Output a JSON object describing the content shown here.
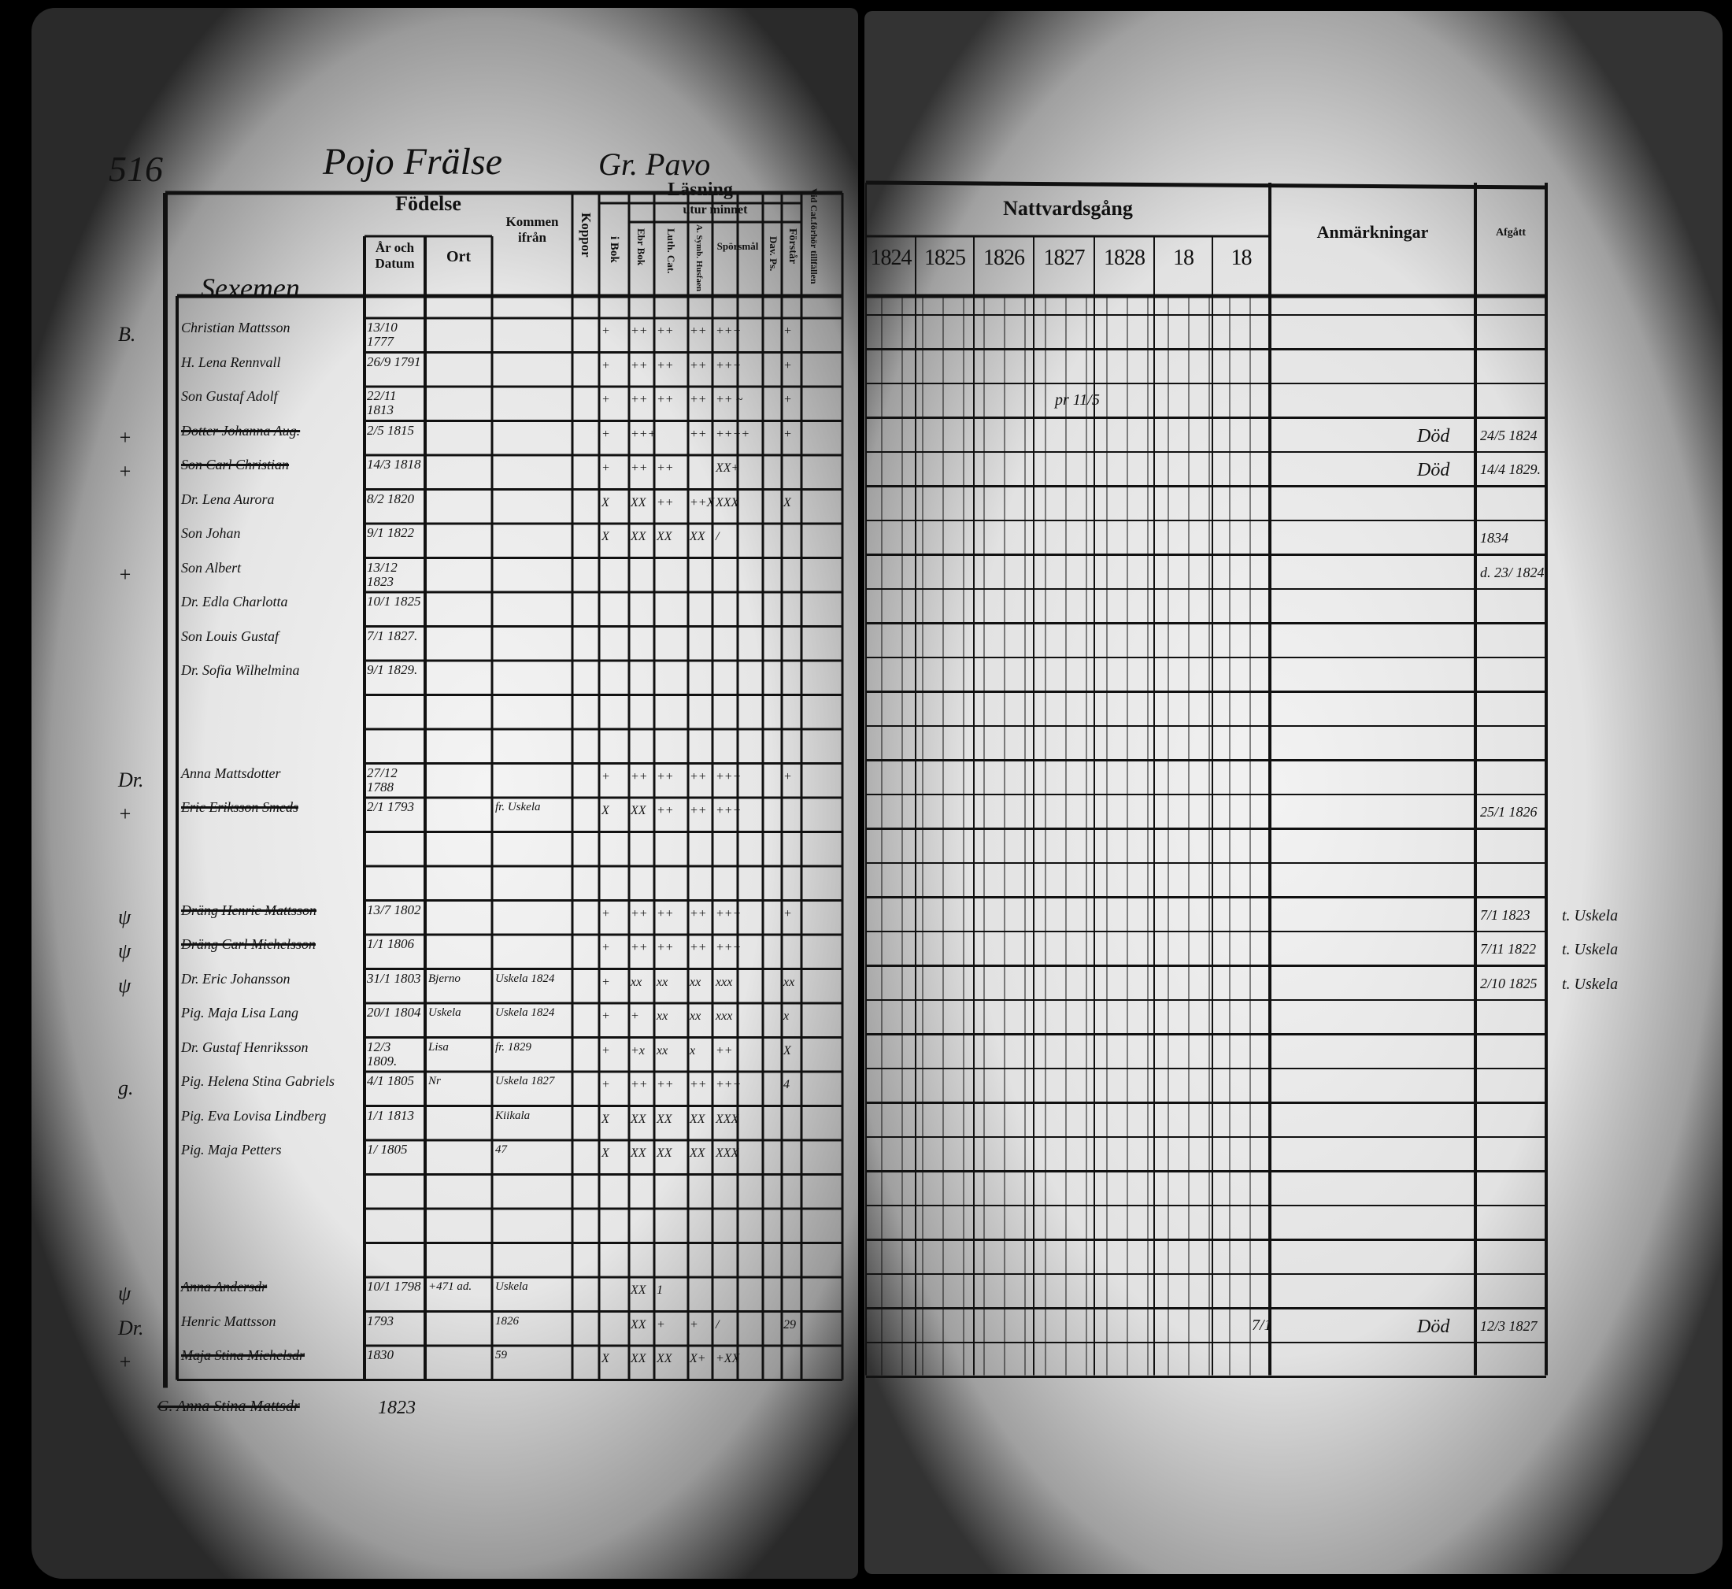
{
  "page_number": "516",
  "heading": {
    "estate": "Pojo Frälse",
    "village": "Gr. Pavo"
  },
  "group_label": "Sexemen",
  "left_headers": {
    "fodelse": "Födelse",
    "ar_och_datum": "År och Datum",
    "ort": "Ort",
    "kommen_ifran": "Kommen ifrån",
    "koppor": "Koppor",
    "lasning": "Läsning",
    "i_bok": "i Bok",
    "utur_minnet": "utur minnet",
    "ebr_bok": "Ebr Bok",
    "luth_cat": "Luth. Cat.",
    "a_symb": "A. Symb. Husfaen",
    "sporsmal": "Spörsmål",
    "dav_ps": "Dav. Ps.",
    "forstar": "Förstår",
    "vid_cat": "Vid Cat.förhör tillfällen"
  },
  "right_headers": {
    "nattvardsgang": "Nattvardsgång",
    "years": [
      "1824",
      "1825",
      "1826",
      "1827",
      "1828",
      "18",
      "18"
    ],
    "anmarkningar": "Anmärkningar",
    "afgatt": "Afgått"
  },
  "rows": [
    {
      "margin": "B.",
      "name": "Christian Mattsson",
      "date": "13/10 1777",
      "marks": [
        "+",
        "++",
        "++",
        "++",
        "+++",
        "+"
      ]
    },
    {
      "name": "H. Lena Rennvall",
      "date": "26/9 1791",
      "marks": [
        "+",
        "++",
        "++",
        "++",
        "+++",
        "+"
      ]
    },
    {
      "name": "Son Gustaf Adolf",
      "date": "22/11 1813",
      "marks": [
        "+",
        "++",
        "++",
        "++",
        "++ ~",
        "+"
      ],
      "nattvard": "pr 11/5"
    },
    {
      "margin": "+",
      "name": "Dotter Johanna Aug.",
      "date": "2/5 1815",
      "struck": true,
      "marks": [
        "+",
        "+++",
        "",
        "++",
        "++++",
        "+"
      ],
      "remark": "Död",
      "afgatt": "24/5 1824"
    },
    {
      "margin": "+",
      "name": "Son Carl Christian",
      "date": "14/3 1818",
      "struck": true,
      "marks": [
        "+",
        "++",
        "++",
        "",
        "XX+",
        ""
      ],
      "remark": "Död",
      "afgatt": "14/4 1829."
    },
    {
      "name": "Dr. Lena Aurora",
      "date": "8/2 1820",
      "marks": [
        "X",
        "XX",
        "++",
        "++X",
        "XXX",
        "X"
      ]
    },
    {
      "name": "Son Johan",
      "date": "9/1 1822",
      "marks": [
        "X",
        "XX",
        "XX",
        "XX",
        "/",
        ""
      ],
      "afgatt": "1834"
    },
    {
      "margin": "+",
      "name": "Son Albert",
      "date": "13/12 1823",
      "afgatt": "d. 23/ 1824"
    },
    {
      "name": "Dr. Edla Charlotta",
      "date": "10/1 1825"
    },
    {
      "name": "Son Louis Gustaf",
      "date": "7/1 1827."
    },
    {
      "name": "Dr. Sofia Wilhelmina",
      "date": "9/1 1829."
    },
    {},
    {},
    {
      "margin": "Dr.",
      "name": "Anna Mattsdotter",
      "date": "27/12 1788",
      "marks": [
        "+",
        "++",
        "++",
        "++",
        "+++",
        "+"
      ]
    },
    {
      "margin": "+",
      "name": "Eric Eriksson Smeds",
      "date": "2/1 1793",
      "struck": true,
      "from": "fr. Uskela",
      "marks": [
        "X",
        "XX",
        "++",
        "++",
        "+++",
        ""
      ],
      "afgatt": "25/1 1826"
    },
    {},
    {},
    {
      "margin": "ψ",
      "name": "Dräng Henric Mattsson",
      "date": "13/7 1802",
      "struck": true,
      "marks": [
        "+",
        "++",
        "++",
        "++",
        "+++",
        "+"
      ],
      "afgatt": "7/1 1823",
      "afgatt_note": "t. Uskela"
    },
    {
      "margin": "ψ",
      "name": "Dräng Carl Michelsson",
      "date": "1/1 1806",
      "struck": true,
      "marks": [
        "+",
        "++",
        "++",
        "++",
        "+++",
        ""
      ],
      "afgatt": "7/11 1822",
      "afgatt_note": "t. Uskela"
    },
    {
      "margin": "ψ",
      "name": "Dr. Eric Johansson",
      "date": "31/1 1803",
      "ort": "Bjerno",
      "from": "Uskela 1824",
      "marks": [
        "+",
        "xx",
        "xx",
        "xx",
        "xxx",
        "xx"
      ],
      "afgatt": "2/10 1825",
      "afgatt_note": "t. Uskela"
    },
    {
      "name": "Pig. Maja Lisa Lang",
      "date": "20/1 1804",
      "ort": "Uskela",
      "from": "Uskela 1824",
      "marks": [
        "+",
        "+",
        "xx",
        "xx",
        "xxx",
        "x"
      ]
    },
    {
      "name": "Dr. Gustaf Henriksson",
      "date": "12/3 1809.",
      "ort": "Lisa",
      "from": "fr. 1829",
      "marks": [
        "+",
        "+x",
        "xx",
        "x",
        "++",
        "X"
      ]
    },
    {
      "margin": "g.",
      "name": "Pig. Helena Stina Gabriels",
      "date": "4/1 1805",
      "ort": "Nr",
      "from": "Uskela 1827",
      "marks": [
        "+",
        "++",
        "++",
        "++",
        "+++",
        "4"
      ]
    },
    {
      "name": "Pig. Eva Lovisa Lindberg",
      "date": "1/1 1813",
      "from": "Kiikala",
      "marks": [
        "X",
        "XX",
        "XX",
        "XX",
        "XXX",
        ""
      ]
    },
    {
      "name": "Pig. Maja Petters",
      "date": "1/ 1805",
      "from": "47",
      "marks": [
        "X",
        "XX",
        "XX",
        "XX",
        "XXX",
        ""
      ]
    },
    {},
    {},
    {},
    {
      "margin": "ψ",
      "name": "Anna Andersdr",
      "date": "10/1 1798",
      "struck": true,
      "ort": "+471 ad.",
      "from": "Uskela",
      "marks": [
        "",
        "XX",
        "1",
        "",
        "",
        ""
      ]
    },
    {
      "margin": "Dr.",
      "name": "Henric Mattsson",
      "date": "1793",
      "from": "1826",
      "marks": [
        "",
        "XX",
        "+",
        "+",
        "/",
        "29"
      ],
      "nattvard": "7/1",
      "remark": "Död",
      "afgatt": "12/3 1827"
    },
    {
      "margin": "+",
      "name": "Maja Stina Michelsdr",
      "date": "1830",
      "struck": true,
      "from": "59",
      "marks": [
        "X",
        "XX",
        "XX",
        "X+",
        "+XX",
        ""
      ]
    }
  ],
  "below_table": {
    "date": "1823",
    "name": "G. Anna Stina Mattsdr"
  }
}
